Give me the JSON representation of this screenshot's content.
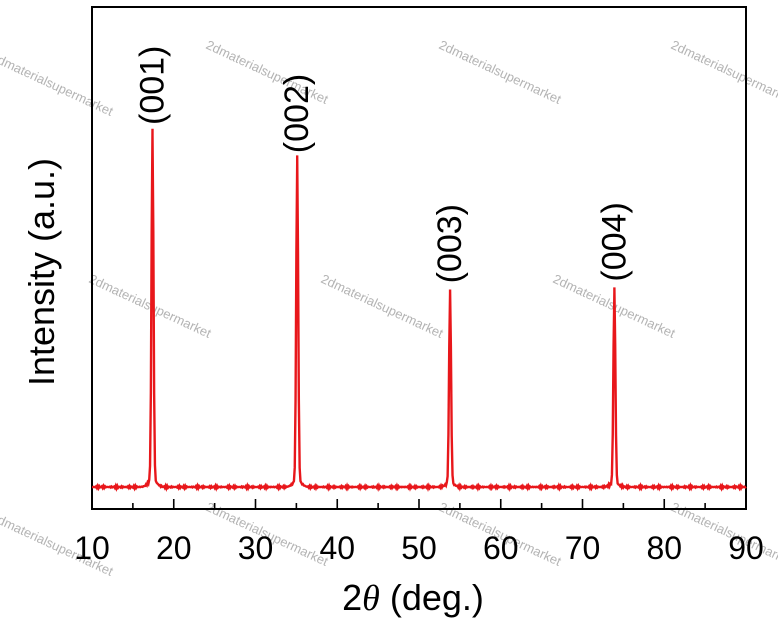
{
  "chart_data": {
    "type": "line",
    "xlabel_prefix": "2",
    "xlabel_symbol": "θ",
    "xlabel_suffix": " (deg.)",
    "ylabel": "Intensity (a.u.)",
    "xlim": [
      10,
      90
    ],
    "ylim": [
      0,
      1.1
    ],
    "x_ticks": [
      10,
      20,
      30,
      40,
      50,
      60,
      70,
      80,
      90
    ],
    "y_ticks": [],
    "grid": false,
    "series": [
      {
        "color": "#e8171b",
        "baseline": 0.0,
        "peaks": [
          {
            "x": 17.4,
            "y": 1.0,
            "label": "(001)"
          },
          {
            "x": 35.1,
            "y": 0.92,
            "label": "(002)"
          },
          {
            "x": 53.8,
            "y": 0.55,
            "label": "(003)"
          },
          {
            "x": 73.9,
            "y": 0.555,
            "label": "(004)"
          }
        ]
      }
    ],
    "watermark": "2dmaterialsupermarket"
  }
}
